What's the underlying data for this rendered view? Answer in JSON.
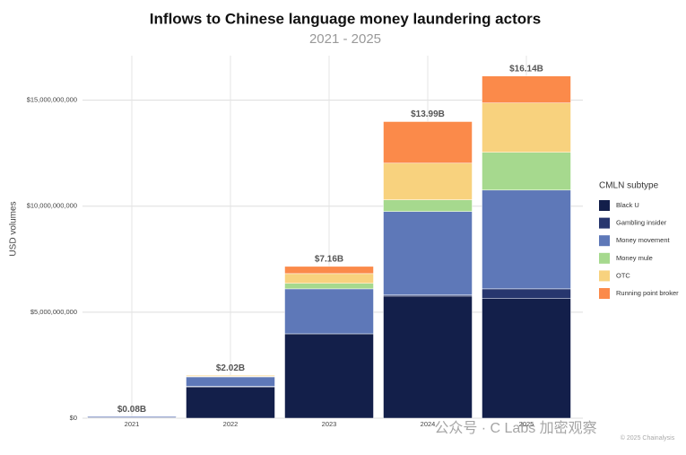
{
  "chart_data": {
    "type": "stacked_bar",
    "title": "Inflows to Chinese language money laundering actors",
    "subtitle": "2021 - 2025",
    "ylabel": "USD volumes",
    "legend_title": "CMLN subtype",
    "legend": "right",
    "grid": true,
    "categories": [
      "2021",
      "2022",
      "2023",
      "2024",
      "2025"
    ],
    "series": [
      {
        "name": "Black U",
        "color": "#131f4a",
        "values": [
          30000000,
          1480000000,
          3980000000,
          5760000000,
          5640000000
        ]
      },
      {
        "name": "Gambling insider",
        "color": "#27366e",
        "values": [
          0,
          20000000,
          0,
          50000000,
          460000000
        ]
      },
      {
        "name": "Money movement",
        "color": "#5e78b8",
        "values": [
          50000000,
          450000000,
          2120000000,
          3940000000,
          4660000000
        ]
      },
      {
        "name": "Money mule",
        "color": "#a6d98e",
        "values": [
          0,
          20000000,
          260000000,
          550000000,
          1780000000
        ]
      },
      {
        "name": "OTC",
        "color": "#f8d27e",
        "values": [
          0,
          50000000,
          460000000,
          1730000000,
          2330000000
        ]
      },
      {
        "name": "Running point broker",
        "color": "#fb8a4a",
        "values": [
          0,
          0,
          340000000,
          1960000000,
          1270000000
        ]
      }
    ],
    "totals": [
      80000000,
      2020000000,
      7160000000,
      13990000000,
      16140000000
    ],
    "total_labels": [
      "$0.08B",
      "$2.02B",
      "$7.16B",
      "$13.99B",
      "$16.14B"
    ],
    "ylim": [
      0,
      17100000000
    ],
    "yticks": [
      {
        "value": 0,
        "label": "$0"
      },
      {
        "value": 5000000000,
        "label": "$5,000,000,000"
      },
      {
        "value": 10000000000,
        "label": "$10,000,000,000"
      },
      {
        "value": 15000000000,
        "label": "$15,000,000,000"
      }
    ],
    "watermark": "公众号 · C Labs 加密观察",
    "credit": "© 2025 Chainalysis"
  }
}
